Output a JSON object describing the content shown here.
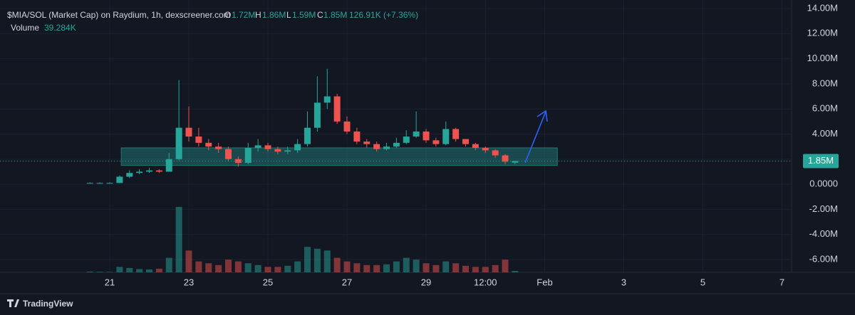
{
  "chart_data": {
    "type": "candlestick",
    "title": "$MIA/SOL (Market Cap) on Raydium, 1h, dexscreener.com",
    "ohlc_legend": {
      "o_key": "O",
      "o": "1.72M",
      "h_key": "H",
      "h": "1.86M",
      "l_key": "L",
      "l": "1.59M",
      "c_key": "C",
      "c": "1.85M",
      "change": "126.91K (+7.36%)"
    },
    "volume_legend": {
      "name": "Volume",
      "value": "39.284K"
    },
    "last_price_label": "1.85M",
    "brand": "TradingView",
    "up_color": "#26a69a",
    "down_color": "#ef5350",
    "x": [
      20.5,
      20.75,
      21,
      21.25,
      21.5,
      21.75,
      22,
      22.25,
      22.5,
      22.75,
      23,
      23.25,
      23.5,
      23.75,
      24,
      24.25,
      24.5,
      24.75,
      25,
      25.25,
      25.5,
      25.75,
      26,
      26.25,
      26.5,
      26.75,
      27,
      27.25,
      27.5,
      27.75,
      28,
      28.25,
      28.5,
      28.75,
      29,
      29.25,
      29.5,
      29.75,
      30,
      30.25,
      30.5,
      30.75,
      31,
      31.25
    ],
    "open": [
      100000,
      100000,
      100000,
      100000,
      600000,
      900000,
      1000000,
      1100000,
      1000000,
      2000000,
      4500000,
      3800000,
      3300000,
      3000000,
      2800000,
      2000000,
      1700000,
      2900000,
      3100000,
      2800000,
      2600000,
      2700000,
      3200000,
      4500000,
      6500000,
      7000000,
      5000000,
      4200000,
      3400000,
      3200000,
      2800000,
      3000000,
      3300000,
      3800000,
      4200000,
      3500000,
      3200000,
      4400000,
      3600000,
      3200000,
      2900000,
      2700000,
      2300000,
      1720000
    ],
    "high": [
      150000,
      150000,
      150000,
      700000,
      1100000,
      1200000,
      1300000,
      1200000,
      2500000,
      8300000,
      6200000,
      4500000,
      3600000,
      3300000,
      3000000,
      2200000,
      3300000,
      3600000,
      3300000,
      3000000,
      3000000,
      3600000,
      5800000,
      8600000,
      9200000,
      7200000,
      5400000,
      4500000,
      3600000,
      3400000,
      3300000,
      3700000,
      4300000,
      5800000,
      4400000,
      3700000,
      5000000,
      4500000,
      3600000,
      3300000,
      3000000,
      2800000,
      2400000,
      1860000
    ],
    "low": [
      50000,
      50000,
      50000,
      100000,
      500000,
      800000,
      900000,
      900000,
      1000000,
      1900000,
      3400000,
      3000000,
      2700000,
      2500000,
      1800000,
      1400000,
      1600000,
      2600000,
      2600000,
      2400000,
      2400000,
      2500000,
      3000000,
      4200000,
      6000000,
      4800000,
      4000000,
      3200000,
      2900000,
      2600000,
      2700000,
      2900000,
      3200000,
      3700000,
      3300000,
      3000000,
      3100000,
      3400000,
      3000000,
      2700000,
      2500000,
      2100000,
      1600000,
      1590000
    ],
    "close": [
      100000,
      100000,
      100000,
      600000,
      900000,
      1000000,
      1100000,
      1000000,
      2000000,
      4500000,
      3800000,
      3300000,
      3000000,
      2800000,
      2000000,
      1700000,
      2900000,
      3100000,
      2800000,
      2600000,
      2700000,
      3200000,
      4500000,
      6500000,
      7000000,
      5000000,
      4200000,
      3400000,
      3200000,
      2800000,
      3000000,
      3300000,
      3800000,
      4200000,
      3500000,
      3200000,
      4400000,
      3600000,
      3200000,
      2900000,
      2700000,
      2300000,
      1800000,
      1850000
    ],
    "volume": [
      20000,
      15000,
      10000,
      150000,
      120000,
      90000,
      80000,
      100000,
      400000,
      1800000,
      600000,
      300000,
      250000,
      200000,
      350000,
      300000,
      250000,
      200000,
      150000,
      150000,
      180000,
      300000,
      700000,
      650000,
      600000,
      400000,
      300000,
      250000,
      200000,
      200000,
      220000,
      300000,
      400000,
      350000,
      250000,
      200000,
      300000,
      250000,
      180000,
      150000,
      150000,
      200000,
      350000,
      39284
    ],
    "zone": {
      "x": [
        21.29,
        32.32
      ],
      "y": [
        1500000,
        2900000
      ],
      "color": "#26a69a"
    },
    "xlim": [
      18.225,
      38.225
    ],
    "xticks": [
      21,
      23,
      25,
      27,
      29,
      {
        "value": 30.5,
        "label": "12:00"
      },
      {
        "value": 32,
        "label": "Feb"
      },
      {
        "value": 34,
        "label": "3"
      },
      {
        "value": 36,
        "label": "5"
      },
      {
        "value": 38,
        "label": "7"
      }
    ],
    "ylim": [
      -6000000,
      14000000
    ],
    "yticks": [
      {
        "value": 14000000,
        "label": "14.00M"
      },
      {
        "value": 12000000,
        "label": "12.00M"
      },
      {
        "value": 10000000,
        "label": "10.00M"
      },
      {
        "value": 8000000,
        "label": "8.00M"
      },
      {
        "value": 6000000,
        "label": "6.00M"
      },
      {
        "value": 4000000,
        "label": "4.00M"
      },
      {
        "value": 2000000,
        "label": "2.00M"
      },
      {
        "value": 0,
        "label": "0.0000"
      },
      {
        "value": -2000000,
        "label": "-2.00M"
      },
      {
        "value": -4000000,
        "label": "-4.00M"
      },
      {
        "value": -6000000,
        "label": "-6.00M"
      }
    ]
  }
}
